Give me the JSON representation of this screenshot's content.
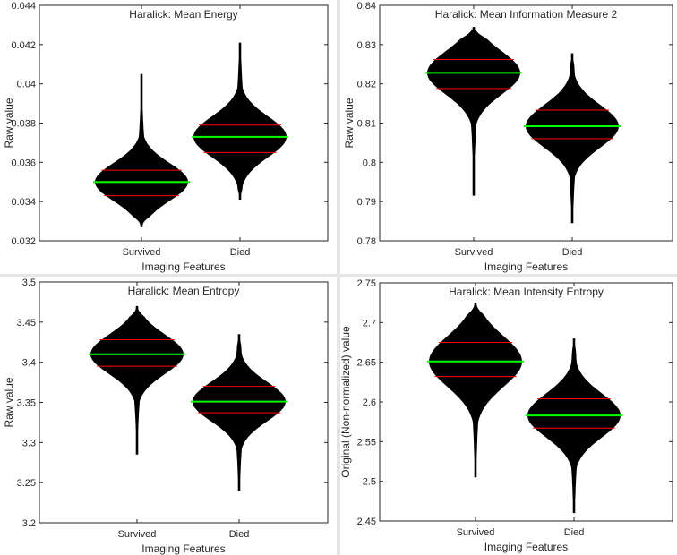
{
  "chart_data": [
    {
      "type": "violin",
      "title": "Haralick: Mean Energy",
      "xlabel": "Imaging Features",
      "ylabel": "Raw value",
      "categories": [
        "Survived",
        "Died"
      ],
      "ylim": [
        0.032,
        0.044
      ],
      "yticks": [
        "0.032",
        "0.034",
        "0.036",
        "0.038",
        "0.04",
        "0.042",
        "0.044"
      ],
      "grid": false,
      "series": [
        {
          "category": "Survived",
          "mean": 0.035,
          "q1": 0.0343,
          "q3": 0.0356,
          "min": 0.0327,
          "max": 0.0405
        },
        {
          "category": "Died",
          "mean": 0.0373,
          "q1": 0.0365,
          "q3": 0.0379,
          "min": 0.0341,
          "max": 0.0421
        }
      ],
      "colors": {
        "fill": "#000000",
        "mean": "#00ff00",
        "quartiles": "#ff0000"
      }
    },
    {
      "type": "violin",
      "title": "Haralick: Mean Information  Measure 2",
      "xlabel": "Imaging Features",
      "ylabel": "Raw value",
      "categories": [
        "Survived",
        "Died"
      ],
      "ylim": [
        0.78,
        0.84
      ],
      "yticks": [
        "0.78",
        "0.79",
        "0.8",
        "0.81",
        "0.82",
        "0.83",
        "0.84"
      ],
      "grid": false,
      "series": [
        {
          "category": "Survived",
          "mean": 0.8228,
          "q1": 0.8188,
          "q3": 0.8262,
          "min": 0.7915,
          "max": 0.8345
        },
        {
          "category": "Died",
          "mean": 0.8092,
          "q1": 0.806,
          "q3": 0.8133,
          "min": 0.7845,
          "max": 0.8278
        }
      ],
      "colors": {
        "fill": "#000000",
        "mean": "#00ff00",
        "quartiles": "#ff0000"
      }
    },
    {
      "type": "violin",
      "title": "Haralick: Mean Entropy",
      "xlabel": "Imaging Features",
      "ylabel": "Raw value",
      "categories": [
        "Survived",
        "Died"
      ],
      "ylim": [
        3.2,
        3.5
      ],
      "yticks": [
        "3.2",
        "3.25",
        "3.3",
        "3.35",
        "3.4",
        "3.45",
        "3.5"
      ],
      "grid": false,
      "series": [
        {
          "category": "Survived",
          "mean": 3.41,
          "q1": 3.395,
          "q3": 3.428,
          "min": 3.285,
          "max": 3.47
        },
        {
          "category": "Died",
          "mean": 3.351,
          "q1": 3.337,
          "q3": 3.37,
          "min": 3.24,
          "max": 3.435
        }
      ],
      "colors": {
        "fill": "#000000",
        "mean": "#00ff00",
        "quartiles": "#ff0000"
      }
    },
    {
      "type": "violin",
      "title": "Haralick: Mean Intensity Entropy",
      "xlabel": "Imaging Features",
      "ylabel": "Original (Non-normalized) value",
      "categories": [
        "Survived",
        "Died"
      ],
      "ylim": [
        2.45,
        2.75
      ],
      "yticks": [
        "2.45",
        "2.5",
        "2.55",
        "2.6",
        "2.65",
        "2.7",
        "2.75"
      ],
      "grid": false,
      "series": [
        {
          "category": "Survived",
          "mean": 2.651,
          "q1": 2.632,
          "q3": 2.675,
          "min": 2.505,
          "max": 2.725
        },
        {
          "category": "Died",
          "mean": 2.583,
          "q1": 2.567,
          "q3": 2.604,
          "min": 2.46,
          "max": 2.68
        }
      ],
      "colors": {
        "fill": "#000000",
        "mean": "#00ff00",
        "quartiles": "#ff0000"
      }
    }
  ]
}
